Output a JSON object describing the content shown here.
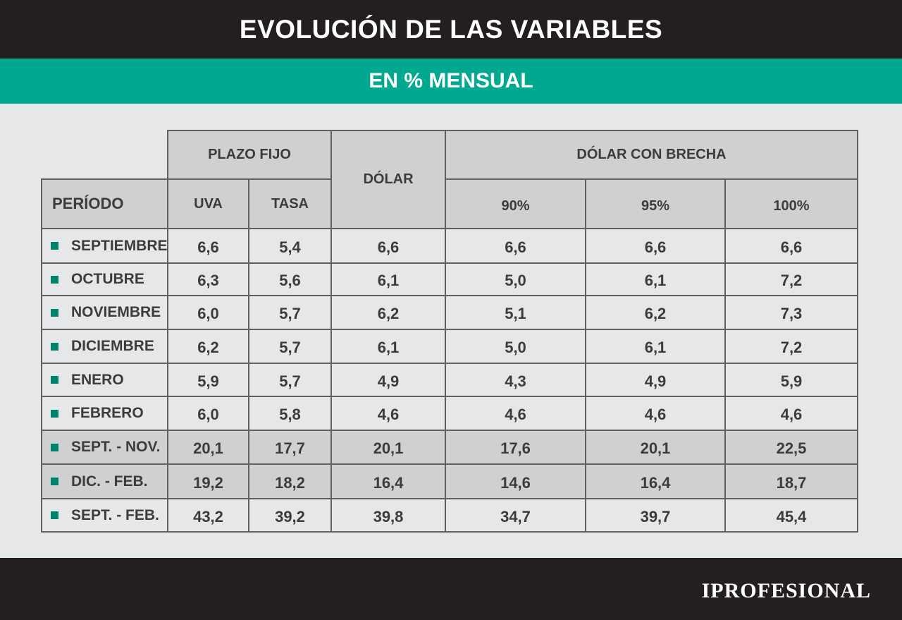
{
  "title": "EVOLUCIÓN DE LAS VARIABLES",
  "subtitle": "EN % MENSUAL",
  "colors": {
    "header_bg": "#231f20",
    "accent": "#00a88f",
    "bullet": "#00836e",
    "shade": "#cfd0d2",
    "background": "#e6e7e8"
  },
  "chart_data": {
    "type": "table",
    "group_headers": [
      "PLAZO FIJO",
      "DÓLAR",
      "DÓLAR CON BRECHA"
    ],
    "row_header": "PERÍODO",
    "columns": [
      "UVA",
      "TASA",
      "",
      "90%",
      "95%",
      "100%"
    ],
    "rows": [
      {
        "label": "SEPTIEMBRE",
        "values": [
          "6,6",
          "5,4",
          "6,6",
          "6,6",
          "6,6",
          "6,6"
        ],
        "shaded": false
      },
      {
        "label": "OCTUBRE",
        "values": [
          "6,3",
          "5,6",
          "6,1",
          "5,0",
          "6,1",
          "7,2"
        ],
        "shaded": false
      },
      {
        "label": "NOVIEMBRE",
        "values": [
          "6,0",
          "5,7",
          "6,2",
          "5,1",
          "6,2",
          "7,3"
        ],
        "shaded": false
      },
      {
        "label": "DICIEMBRE",
        "values": [
          "6,2",
          "5,7",
          "6,1",
          "5,0",
          "6,1",
          "7,2"
        ],
        "shaded": false
      },
      {
        "label": "ENERO",
        "values": [
          "5,9",
          "5,7",
          "4,9",
          "4,3",
          "4,9",
          "5,9"
        ],
        "shaded": false
      },
      {
        "label": "FEBRERO",
        "values": [
          "6,0",
          "5,8",
          "4,6",
          "4,6",
          "4,6",
          "4,6"
        ],
        "shaded": false
      },
      {
        "label": "SEPT. - NOV.",
        "values": [
          "20,1",
          "17,7",
          "20,1",
          "17,6",
          "20,1",
          "22,5"
        ],
        "shaded": true
      },
      {
        "label": "DIC. - FEB.",
        "values": [
          "19,2",
          "18,2",
          "16,4",
          "14,6",
          "16,4",
          "18,7"
        ],
        "shaded": true
      },
      {
        "label": "SEPT. - FEB.",
        "values": [
          "43,2",
          "39,2",
          "39,8",
          "34,7",
          "39,7",
          "45,4"
        ],
        "shaded": false
      }
    ]
  },
  "logo": {
    "text": "IPROFESIONAL"
  }
}
